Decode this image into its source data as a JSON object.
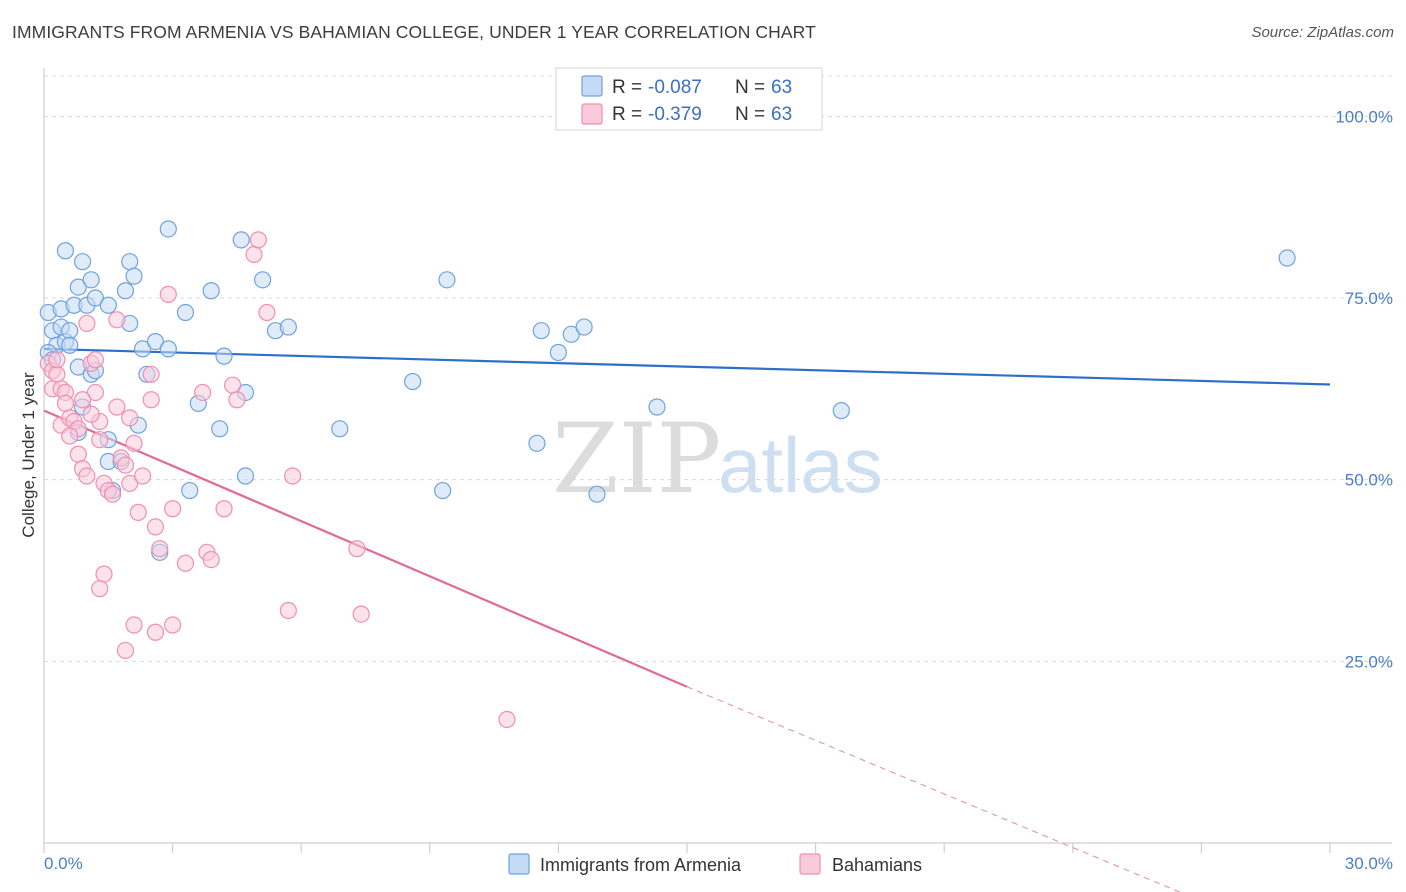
{
  "title": "IMMIGRANTS FROM ARMENIA VS BAHAMIAN COLLEGE, UNDER 1 YEAR CORRELATION CHART",
  "source": "Source: ZipAtlas.com",
  "watermark": {
    "zip": "ZIP",
    "atlas": "atlas"
  },
  "colors": {
    "blue": "#6fa3e0",
    "blue_fill": "#c5daf4",
    "blue_line": "#2f6fcc",
    "pink": "#f08fb0",
    "pink_fill": "#f9cadb",
    "pink_line": "#e06a95",
    "grid": "#d9d9d9",
    "axis_text": "#4a7ec9"
  },
  "legend": {
    "r_label": "R =",
    "n_label": "N =",
    "rows": [
      {
        "r": "-0.087",
        "n": "63"
      },
      {
        "r": "-0.379",
        "n": "63"
      }
    ]
  },
  "chart_data": {
    "type": "scatter",
    "title": "IMMIGRANTS FROM ARMENIA VS BAHAMIAN COLLEGE, UNDER 1 YEAR CORRELATION CHART",
    "xlabel": "",
    "ylabel": "College, Under 1 year",
    "xlim": [
      0,
      30
    ],
    "ylim": [
      0,
      105
    ],
    "x_tick_labels": [
      "0.0%",
      "30.0%"
    ],
    "y_ticks": [
      25,
      50,
      75,
      100
    ],
    "y_tick_labels": [
      "25.0%",
      "50.0%",
      "75.0%",
      "100.0%"
    ],
    "series": [
      {
        "name": "Immigrants from Armenia",
        "color": "blue",
        "trend": {
          "x0": 0,
          "y0": 68.0,
          "x1": 30,
          "y1": 63.1,
          "dashed_to": null
        },
        "points": [
          [
            0.1,
            73.0
          ],
          [
            0.2,
            70.5
          ],
          [
            0.3,
            68.5
          ],
          [
            0.1,
            67.5
          ],
          [
            0.2,
            66.5
          ],
          [
            0.4,
            71.0
          ],
          [
            0.4,
            73.5
          ],
          [
            0.5,
            69.0
          ],
          [
            0.5,
            81.5
          ],
          [
            0.6,
            70.5
          ],
          [
            0.6,
            68.5
          ],
          [
            0.7,
            74.0
          ],
          [
            0.8,
            76.5
          ],
          [
            0.9,
            80.0
          ],
          [
            1.0,
            74.0
          ],
          [
            1.1,
            77.5
          ],
          [
            1.2,
            75.0
          ],
          [
            1.5,
            74.0
          ],
          [
            1.9,
            76.0
          ],
          [
            2.0,
            71.5
          ],
          [
            2.0,
            80.0
          ],
          [
            2.1,
            78.0
          ],
          [
            2.3,
            68.0
          ],
          [
            2.6,
            69.0
          ],
          [
            2.9,
            68.0
          ],
          [
            2.9,
            84.5
          ],
          [
            3.3,
            73.0
          ],
          [
            3.9,
            76.0
          ],
          [
            4.2,
            67.0
          ],
          [
            4.6,
            83.0
          ],
          [
            5.1,
            77.5
          ],
          [
            5.4,
            70.5
          ],
          [
            5.7,
            71.0
          ],
          [
            0.8,
            65.5
          ],
          [
            1.1,
            64.5
          ],
          [
            1.2,
            65.0
          ],
          [
            0.9,
            60.0
          ],
          [
            0.8,
            56.5
          ],
          [
            1.5,
            55.5
          ],
          [
            1.5,
            52.5
          ],
          [
            1.6,
            48.5
          ],
          [
            1.8,
            52.5
          ],
          [
            2.2,
            57.5
          ],
          [
            2.4,
            64.5
          ],
          [
            2.7,
            40.0
          ],
          [
            3.4,
            48.5
          ],
          [
            3.6,
            60.5
          ],
          [
            4.1,
            57.0
          ],
          [
            4.7,
            62.0
          ],
          [
            4.7,
            50.5
          ],
          [
            6.9,
            57.0
          ],
          [
            8.6,
            63.5
          ],
          [
            9.3,
            48.5
          ],
          [
            9.4,
            77.5
          ],
          [
            11.6,
            70.5
          ],
          [
            11.5,
            55.0
          ],
          [
            12.0,
            67.5
          ],
          [
            12.3,
            70.0
          ],
          [
            12.6,
            71.0
          ],
          [
            12.9,
            48.0
          ],
          [
            14.3,
            60.0
          ],
          [
            18.6,
            59.5
          ],
          [
            29.0,
            80.5
          ]
        ]
      },
      {
        "name": "Bahamians",
        "color": "pink",
        "trend": {
          "x0": 0,
          "y0": 59.5,
          "x1": 15,
          "y1": 21.5,
          "dashed_to": [
            27,
            -8
          ]
        },
        "points": [
          [
            0.1,
            66.0
          ],
          [
            0.2,
            65.0
          ],
          [
            0.3,
            64.5
          ],
          [
            0.2,
            62.5
          ],
          [
            0.4,
            62.5
          ],
          [
            0.5,
            62.0
          ],
          [
            0.3,
            66.5
          ],
          [
            0.4,
            57.5
          ],
          [
            0.5,
            60.5
          ],
          [
            0.6,
            58.5
          ],
          [
            0.7,
            58.0
          ],
          [
            0.8,
            53.5
          ],
          [
            0.9,
            51.5
          ],
          [
            1.0,
            50.5
          ],
          [
            1.1,
            66.0
          ],
          [
            1.2,
            66.5
          ],
          [
            1.0,
            71.5
          ],
          [
            1.2,
            62.0
          ],
          [
            1.3,
            58.0
          ],
          [
            1.3,
            55.5
          ],
          [
            1.4,
            49.5
          ],
          [
            1.5,
            48.5
          ],
          [
            1.6,
            48.0
          ],
          [
            1.7,
            72.0
          ],
          [
            1.7,
            60.0
          ],
          [
            1.8,
            53.0
          ],
          [
            1.9,
            52.0
          ],
          [
            2.0,
            49.5
          ],
          [
            2.0,
            58.5
          ],
          [
            2.1,
            55.0
          ],
          [
            2.2,
            45.5
          ],
          [
            2.3,
            50.5
          ],
          [
            2.5,
            61.0
          ],
          [
            2.5,
            64.5
          ],
          [
            2.6,
            43.5
          ],
          [
            2.7,
            40.5
          ],
          [
            2.9,
            75.5
          ],
          [
            3.0,
            46.0
          ],
          [
            3.3,
            38.5
          ],
          [
            3.7,
            62.0
          ],
          [
            3.8,
            40.0
          ],
          [
            3.9,
            39.0
          ],
          [
            4.2,
            46.0
          ],
          [
            4.4,
            63.0
          ],
          [
            4.5,
            61.0
          ],
          [
            4.9,
            81.0
          ],
          [
            5.0,
            83.0
          ],
          [
            5.2,
            73.0
          ],
          [
            5.7,
            32.0
          ],
          [
            5.8,
            50.5
          ],
          [
            7.3,
            40.5
          ],
          [
            7.4,
            31.5
          ],
          [
            10.8,
            17.0
          ],
          [
            1.4,
            37.0
          ],
          [
            1.3,
            35.0
          ],
          [
            2.1,
            30.0
          ],
          [
            2.6,
            29.0
          ],
          [
            3.0,
            30.0
          ],
          [
            1.9,
            26.5
          ],
          [
            0.8,
            57.0
          ],
          [
            1.1,
            59.0
          ],
          [
            0.6,
            56.0
          ],
          [
            0.9,
            61.0
          ]
        ]
      }
    ]
  },
  "bottom_legend": [
    {
      "label": "Immigrants from Armenia",
      "color": "blue"
    },
    {
      "label": "Bahamians",
      "color": "pink"
    }
  ]
}
